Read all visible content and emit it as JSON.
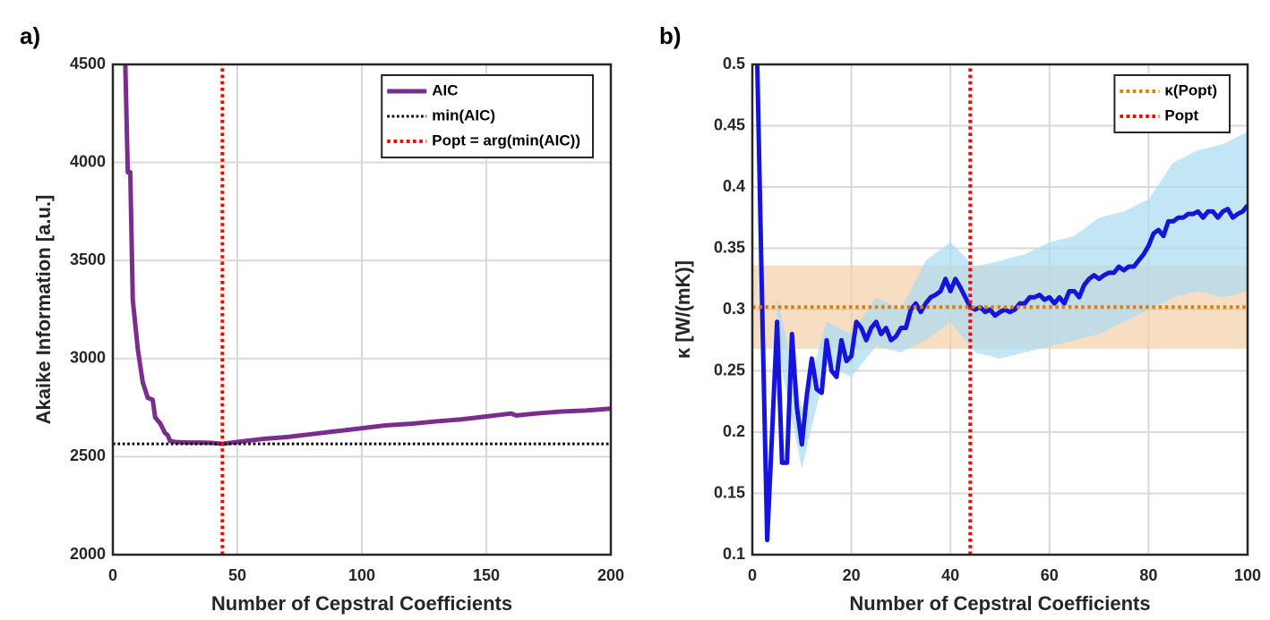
{
  "chart_data": [
    {
      "type": "line",
      "panel_label": "a)",
      "xlabel": "Number of Cepstral Coefficients",
      "ylabel": "Akaike Information [a.u.]",
      "xlim": [
        0,
        200
      ],
      "ylim": [
        2000,
        4500
      ],
      "xticks": [
        0,
        50,
        100,
        150,
        200
      ],
      "yticks": [
        2000,
        2500,
        3000,
        3500,
        4000,
        4500
      ],
      "grid": true,
      "legend": "upper right",
      "series": [
        {
          "name": "AIC",
          "color": "#7b2d8e",
          "style": "solid",
          "width": 5,
          "x": [
            5,
            6,
            7,
            8,
            10,
            12,
            14,
            16,
            17,
            19,
            21,
            22,
            23,
            25,
            30,
            35,
            40,
            44,
            50,
            60,
            70,
            80,
            90,
            100,
            110,
            120,
            130,
            140,
            150,
            160,
            162,
            170,
            180,
            190,
            200
          ],
          "values": [
            4500,
            3950,
            3950,
            3300,
            3050,
            2880,
            2800,
            2790,
            2700,
            2670,
            2620,
            2610,
            2580,
            2575,
            2572,
            2572,
            2570,
            2565,
            2575,
            2590,
            2600,
            2615,
            2630,
            2645,
            2660,
            2668,
            2680,
            2690,
            2705,
            2720,
            2710,
            2720,
            2730,
            2735,
            2745
          ]
        },
        {
          "name": "min(AIC)",
          "color": "#000000",
          "style": "dotted",
          "width": 3,
          "x": [
            0,
            200
          ],
          "values": [
            2565,
            2565
          ]
        },
        {
          "name": "Popt = arg(min(AIC))",
          "color": "#ff0000",
          "style": "dotted",
          "width": 4,
          "x": [
            44,
            44
          ],
          "values": [
            2000,
            4500
          ]
        }
      ]
    },
    {
      "type": "line",
      "panel_label": "b)",
      "xlabel": "Number of Cepstral Coefficients",
      "ylabel": "κ [W/(mK)]",
      "xlim": [
        0,
        100
      ],
      "ylim": [
        0.1,
        0.5
      ],
      "xticks": [
        0,
        20,
        40,
        60,
        80,
        100
      ],
      "yticks": [
        0.1,
        0.15,
        0.2,
        0.25,
        0.3,
        0.35,
        0.4,
        0.45,
        0.5
      ],
      "grid": true,
      "legend": "upper right",
      "bands": [
        {
          "color": "#f3cfa6",
          "x": [
            0,
            100
          ],
          "lower": [
            0.268,
            0.268
          ],
          "upper": [
            0.336,
            0.336
          ]
        },
        {
          "color": "#a9dcf3",
          "x": [
            5,
            10,
            15,
            20,
            25,
            30,
            35,
            40,
            45,
            50,
            55,
            60,
            65,
            70,
            75,
            80,
            85,
            90,
            95,
            100
          ],
          "lower": [
            0.27,
            0.17,
            0.255,
            0.245,
            0.27,
            0.265,
            0.275,
            0.29,
            0.265,
            0.26,
            0.265,
            0.27,
            0.275,
            0.28,
            0.29,
            0.3,
            0.31,
            0.315,
            0.31,
            0.315
          ],
          "upper": [
            0.31,
            0.22,
            0.29,
            0.28,
            0.31,
            0.3,
            0.34,
            0.355,
            0.335,
            0.34,
            0.345,
            0.355,
            0.36,
            0.375,
            0.38,
            0.39,
            0.42,
            0.43,
            0.435,
            0.445
          ]
        }
      ],
      "series": [
        {
          "color": "#1414dc",
          "style": "solid",
          "width": 5,
          "x": [
            1,
            2,
            3,
            4,
            5,
            6,
            7,
            8,
            9,
            10,
            11,
            12,
            13,
            14,
            15,
            16,
            17,
            18,
            19,
            20,
            21,
            22,
            23,
            24,
            25,
            26,
            27,
            28,
            29,
            30,
            31,
            32,
            33,
            34,
            35,
            36,
            37,
            38,
            39,
            40,
            41,
            42,
            43,
            44,
            45,
            46,
            47,
            48,
            49,
            50,
            51,
            52,
            53,
            54,
            55,
            56,
            57,
            58,
            59,
            60,
            61,
            62,
            63,
            64,
            65,
            66,
            67,
            68,
            69,
            70,
            71,
            72,
            73,
            74,
            75,
            76,
            77,
            78,
            79,
            80,
            81,
            82,
            83,
            84,
            85,
            86,
            87,
            88,
            89,
            90,
            91,
            92,
            93,
            94,
            95,
            96,
            97,
            98,
            99,
            100
          ],
          "values": [
            0.5,
            0.3,
            0.112,
            0.2,
            0.29,
            0.175,
            0.175,
            0.28,
            0.22,
            0.19,
            0.23,
            0.26,
            0.235,
            0.232,
            0.275,
            0.25,
            0.245,
            0.275,
            0.258,
            0.262,
            0.29,
            0.285,
            0.275,
            0.285,
            0.29,
            0.28,
            0.285,
            0.275,
            0.278,
            0.285,
            0.285,
            0.3,
            0.305,
            0.298,
            0.305,
            0.31,
            0.312,
            0.315,
            0.325,
            0.315,
            0.325,
            0.318,
            0.31,
            0.302,
            0.3,
            0.302,
            0.298,
            0.3,
            0.295,
            0.298,
            0.3,
            0.298,
            0.3,
            0.305,
            0.305,
            0.31,
            0.31,
            0.312,
            0.308,
            0.31,
            0.305,
            0.31,
            0.305,
            0.315,
            0.315,
            0.31,
            0.32,
            0.325,
            0.328,
            0.325,
            0.328,
            0.33,
            0.33,
            0.335,
            0.332,
            0.335,
            0.335,
            0.34,
            0.345,
            0.352,
            0.362,
            0.365,
            0.36,
            0.372,
            0.372,
            0.375,
            0.375,
            0.378,
            0.378,
            0.38,
            0.375,
            0.38,
            0.38,
            0.375,
            0.38,
            0.382,
            0.375,
            0.378,
            0.38,
            0.385
          ]
        },
        {
          "name": "κ(Popt)",
          "color": "#d9800f",
          "style": "dotted",
          "width": 4,
          "x": [
            0,
            100
          ],
          "values": [
            0.302,
            0.302
          ]
        },
        {
          "name": "Popt",
          "color": "#ff0000",
          "style": "dotted",
          "width": 4,
          "x": [
            44,
            44
          ],
          "values": [
            0.1,
            0.5
          ]
        }
      ]
    }
  ]
}
